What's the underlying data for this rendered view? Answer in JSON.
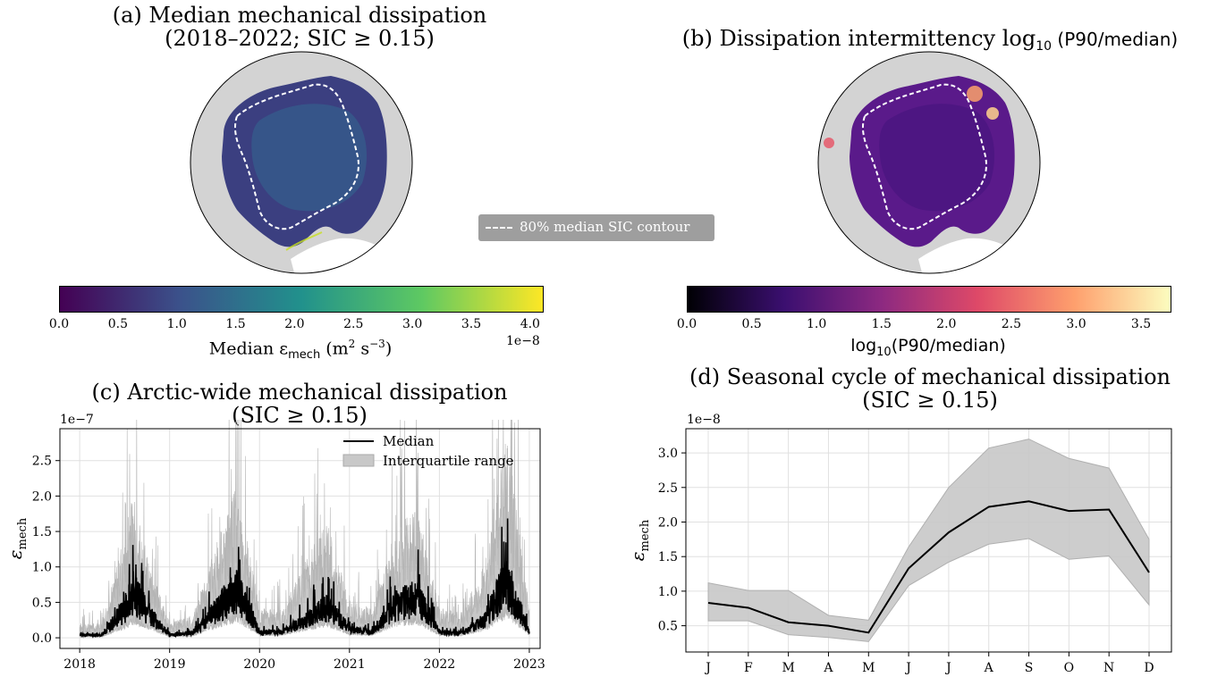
{
  "panel_a": {
    "title_line1": "(a) Median mechanical dissipation",
    "title_line2": "(2018–2022; SIC ≥ 0.15)",
    "colorbar_ticks": [
      "0.0",
      "0.5",
      "1.0",
      "1.5",
      "2.0",
      "2.5",
      "3.0",
      "3.5",
      "4.0"
    ],
    "colorbar_label": "Median ε",
    "colorbar_label_sub": "mech",
    "colorbar_label_units": " (m",
    "colorbar_label_units2": " s",
    "colorbar_exponent": "1e−8",
    "colormap": [
      "#440154",
      "#3b528b",
      "#21918c",
      "#5ec962",
      "#fde725"
    ]
  },
  "panel_b": {
    "title_main": "(b) Dissipation intermittency log",
    "title_sub": "10",
    "title_tail": "(P90/median)",
    "colorbar_ticks": [
      "0.0",
      "0.5",
      "1.0",
      "1.5",
      "2.0",
      "2.5",
      "3.0",
      "3.5"
    ],
    "colorbar_label": "log",
    "colorbar_label_sub": "10",
    "colorbar_label_tail": "(P90/median)",
    "colormap": [
      "#000004",
      "#3b0f70",
      "#8c2981",
      "#de4968",
      "#fe9f6d",
      "#fcfdbf"
    ]
  },
  "legend_shared": {
    "label": "80% median SIC contour"
  },
  "panel_c": {
    "title_line1": "(c) Arctic-wide mechanical dissipation",
    "title_line2": "(SIC ≥ 0.15)",
    "ylabel": "ε",
    "ylabel_sub": "mech",
    "exponent": "1e−7",
    "legend_median": "Median",
    "legend_iqr": "Interquartile range"
  },
  "panel_d": {
    "title_line1": "(d) Seasonal cycle of mechanical dissipation",
    "title_line2": "(SIC ≥ 0.15)",
    "ylabel": "ε",
    "ylabel_sub": "mech",
    "exponent": "1e−8"
  },
  "chart_data": [
    {
      "type": "line",
      "panel": "c",
      "x": [
        2018.0,
        2018.25,
        2018.5,
        2018.6,
        2018.75,
        2019.0,
        2019.25,
        2019.5,
        2019.75,
        2020.0,
        2020.25,
        2020.5,
        2020.75,
        2021.0,
        2021.25,
        2021.5,
        2021.75,
        2022.0,
        2022.25,
        2022.5,
        2022.75,
        2023.0
      ],
      "series": [
        {
          "name": "Median",
          "values": [
            0.05,
            0.05,
            0.5,
            0.8,
            0.45,
            0.05,
            0.08,
            0.45,
            0.85,
            0.1,
            0.1,
            0.3,
            0.55,
            0.15,
            0.1,
            0.55,
            0.7,
            0.1,
            0.08,
            0.3,
            1.0,
            0.1
          ]
        },
        {
          "name": "Interquartile range",
          "lower": [
            0.02,
            0.02,
            0.2,
            0.3,
            0.2,
            0.02,
            0.03,
            0.2,
            0.35,
            0.05,
            0.05,
            0.15,
            0.25,
            0.06,
            0.05,
            0.25,
            0.3,
            0.05,
            0.04,
            0.15,
            0.45,
            0.05
          ],
          "upper": [
            0.2,
            0.2,
            1.4,
            2.0,
            1.1,
            0.2,
            0.3,
            1.2,
            2.1,
            0.4,
            0.4,
            1.0,
            1.6,
            0.5,
            0.4,
            1.4,
            1.8,
            0.4,
            0.35,
            1.0,
            2.8,
            0.4
          ]
        }
      ],
      "xticks": [
        "2018",
        "2019",
        "2020",
        "2021",
        "2022",
        "2023"
      ],
      "yticks": [
        "0.0",
        "0.5",
        "1.0",
        "1.5",
        "2.0",
        "2.5"
      ],
      "ylim": [
        -0.15,
        2.95
      ],
      "xlim": [
        2017.78,
        2023.12
      ],
      "grid": true,
      "legend": "top-right"
    },
    {
      "type": "line",
      "panel": "d",
      "categories": [
        "J",
        "F",
        "M",
        "A",
        "M",
        "J",
        "J",
        "A",
        "S",
        "O",
        "N",
        "D"
      ],
      "series": [
        {
          "name": "Median",
          "values": [
            0.83,
            0.76,
            0.55,
            0.5,
            0.4,
            1.33,
            1.85,
            2.22,
            2.3,
            2.16,
            2.18,
            1.27
          ]
        },
        {
          "name": "IQR",
          "lower": [
            0.57,
            0.57,
            0.37,
            0.33,
            0.27,
            1.08,
            1.42,
            1.68,
            1.76,
            1.46,
            1.51,
            0.8
          ],
          "upper": [
            1.12,
            1.01,
            1.01,
            0.65,
            0.58,
            1.64,
            2.5,
            3.07,
            3.2,
            2.92,
            2.78,
            1.75
          ]
        }
      ],
      "yticks": [
        "0.5",
        "1.0",
        "1.5",
        "2.0",
        "2.5",
        "3.0"
      ],
      "ylim": [
        0.12,
        3.35
      ],
      "grid": true
    }
  ]
}
